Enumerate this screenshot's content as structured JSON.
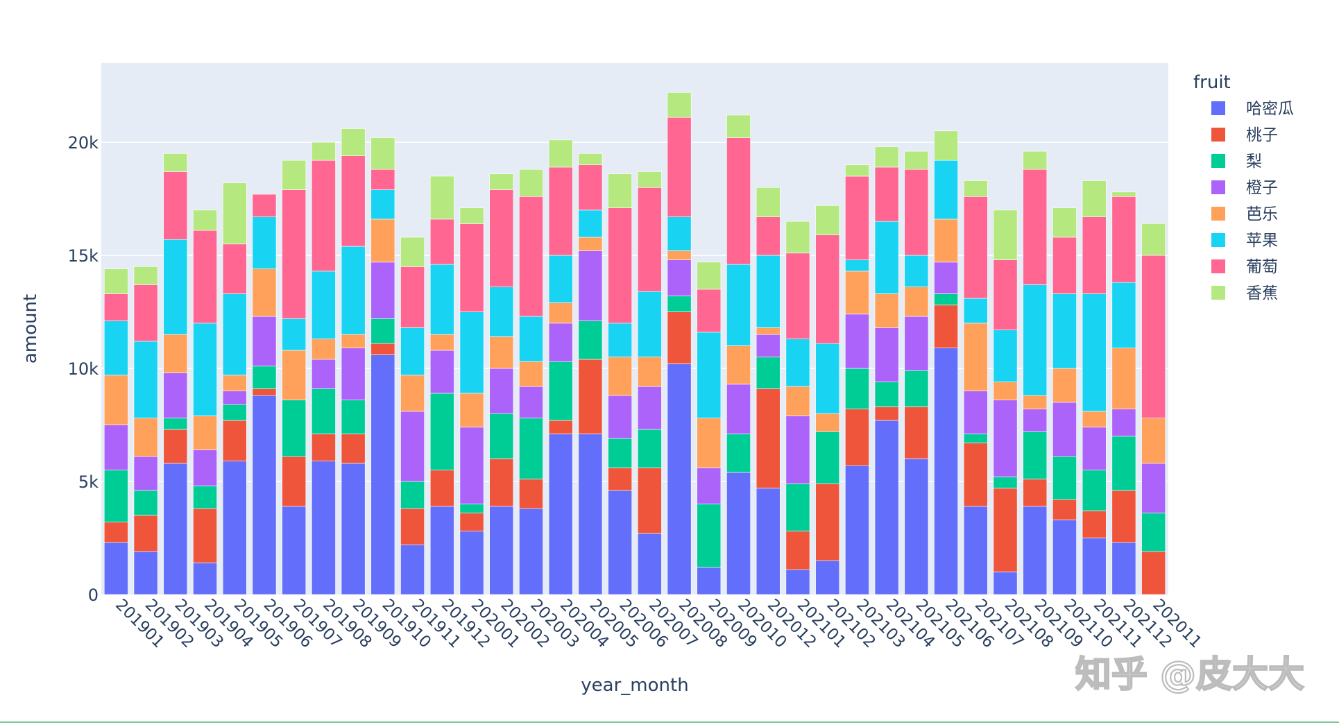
{
  "chart_data": {
    "type": "bar",
    "barmode": "stack",
    "title": "",
    "xlabel": "year_month",
    "ylabel": "amount",
    "ylim": [
      0,
      23500
    ],
    "yticks": [
      0,
      5000,
      10000,
      15000,
      20000
    ],
    "ytick_labels": [
      "0",
      "5k",
      "10k",
      "15k",
      "20k"
    ],
    "grid": true,
    "legend": {
      "title": "fruit",
      "placement": "right"
    },
    "categories": [
      "201901",
      "201902",
      "201903",
      "201904",
      "201905",
      "201906",
      "201907",
      "201908",
      "201909",
      "201910",
      "201911",
      "201912",
      "202001",
      "202002",
      "202003",
      "202004",
      "202005",
      "202006",
      "202007",
      "202008",
      "202009",
      "202010",
      "202012",
      "202101",
      "202102",
      "202103",
      "202104",
      "202105",
      "202106",
      "202107",
      "202108",
      "202109",
      "202110",
      "202111",
      "202112",
      "202011"
    ],
    "series": [
      {
        "name": "哈密瓜",
        "color": "#636efa",
        "values": [
          2300,
          1900,
          5800,
          1400,
          5900,
          8800,
          3900,
          5900,
          5800,
          10600,
          2200,
          3900,
          2800,
          3900,
          3800,
          7100,
          7100,
          4600,
          2700,
          10200,
          1200,
          5400,
          4700,
          1100,
          1500,
          5700,
          7700,
          6000,
          10900,
          3900,
          1000,
          3900,
          3300,
          2500,
          2300,
          0
        ]
      },
      {
        "name": "桃子",
        "color": "#ef553b",
        "values": [
          900,
          1600,
          1500,
          2400,
          1800,
          300,
          2200,
          1200,
          1300,
          500,
          1600,
          1600,
          800,
          2100,
          1300,
          600,
          3300,
          1000,
          2900,
          2300,
          0,
          0,
          4400,
          1700,
          3400,
          2500,
          600,
          2300,
          1900,
          2800,
          3700,
          1200,
          900,
          1200,
          2300,
          1900
        ]
      },
      {
        "name": "梨",
        "color": "#00cc96",
        "values": [
          2300,
          1100,
          500,
          1000,
          700,
          1000,
          2500,
          2000,
          1500,
          1100,
          1200,
          3400,
          400,
          2000,
          2700,
          2600,
          1700,
          1300,
          1700,
          700,
          2800,
          1700,
          1400,
          2100,
          2300,
          1800,
          1100,
          1600,
          500,
          400,
          500,
          2100,
          1900,
          1800,
          2400,
          1700
        ]
      },
      {
        "name": "橙子",
        "color": "#ab63fa",
        "values": [
          2000,
          1500,
          2000,
          1600,
          600,
          2200,
          0,
          1300,
          2300,
          2500,
          3100,
          1900,
          3400,
          2000,
          1400,
          1700,
          3100,
          1900,
          1900,
          1600,
          1600,
          2200,
          1000,
          3000,
          0,
          2400,
          2400,
          2400,
          1400,
          1900,
          3400,
          1000,
          2400,
          1900,
          1200,
          2200
        ]
      },
      {
        "name": "芭乐",
        "color": "#ffa15a",
        "values": [
          2200,
          1700,
          1700,
          1500,
          700,
          2100,
          2200,
          900,
          600,
          1900,
          1600,
          700,
          1500,
          1400,
          1100,
          900,
          600,
          1700,
          1300,
          400,
          2200,
          1700,
          300,
          1300,
          800,
          1900,
          1500,
          1300,
          1900,
          3000,
          800,
          600,
          1500,
          700,
          2700,
          2000
        ]
      },
      {
        "name": "苹果",
        "color": "#19d3f3",
        "values": [
          2400,
          3400,
          4200,
          4100,
          3600,
          2300,
          1400,
          3000,
          3900,
          1300,
          2100,
          3100,
          3600,
          2200,
          2000,
          2100,
          1200,
          1500,
          2900,
          1500,
          3800,
          3600,
          3200,
          2100,
          3100,
          500,
          3200,
          1400,
          2600,
          1100,
          2300,
          4900,
          3300,
          5200,
          2900,
          0
        ]
      },
      {
        "name": "葡萄",
        "color": "#ff6692",
        "values": [
          1200,
          2500,
          3000,
          4100,
          2200,
          1000,
          5700,
          4900,
          4000,
          900,
          2700,
          2000,
          3900,
          4300,
          5300,
          3900,
          2000,
          5100,
          4600,
          4400,
          1900,
          5600,
          1700,
          3800,
          4800,
          3700,
          2400,
          3800,
          0,
          4500,
          3100,
          5100,
          2500,
          3400,
          3800,
          7200
        ]
      },
      {
        "name": "香蕉",
        "color": "#b6e880",
        "values": [
          1100,
          800,
          800,
          900,
          2700,
          0,
          1300,
          800,
          1200,
          1400,
          1300,
          1900,
          700,
          700,
          1200,
          1200,
          500,
          1500,
          700,
          1100,
          1200,
          1000,
          1300,
          1400,
          1300,
          500,
          900,
          800,
          1300,
          700,
          2200,
          800,
          1300,
          1600,
          200,
          1400
        ]
      }
    ]
  },
  "watermark": "知乎 @皮大大"
}
